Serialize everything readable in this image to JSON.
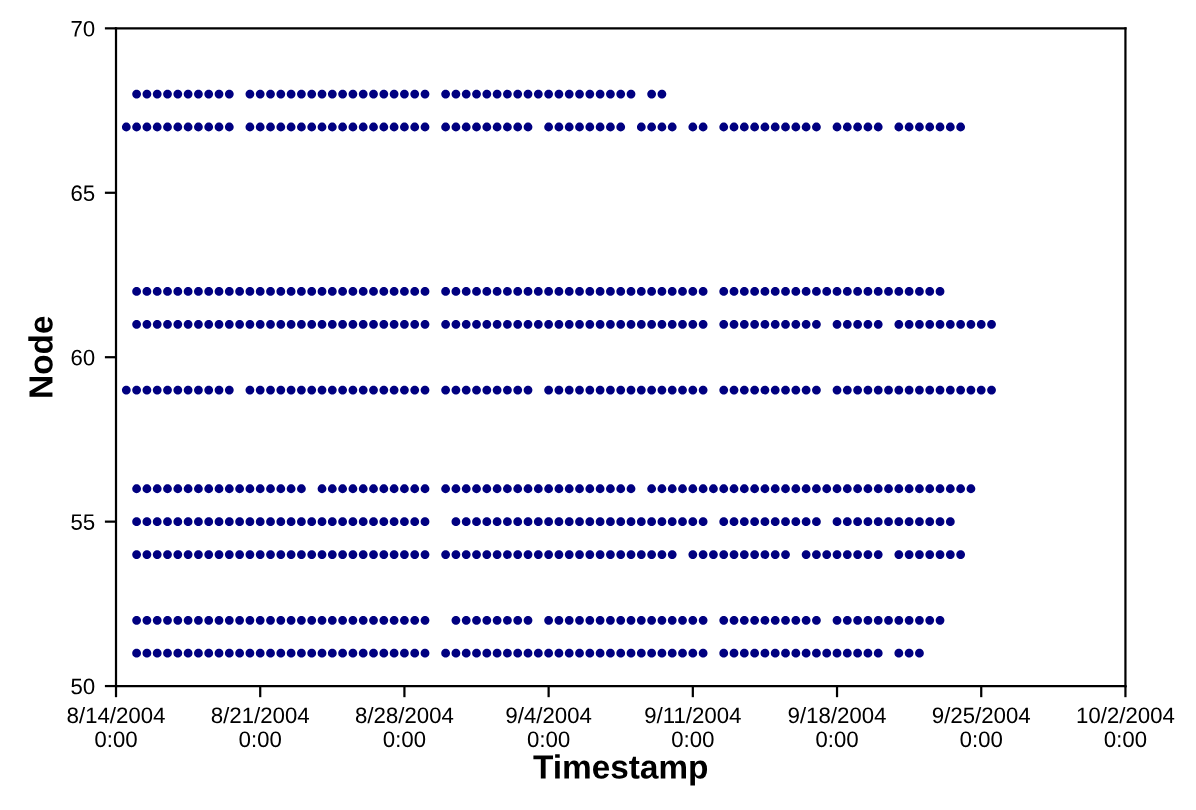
{
  "chart_data": {
    "type": "scatter",
    "xlabel": "Timestamp",
    "ylabel": "Node",
    "marker": "circle",
    "grid": false,
    "xlim": [
      "2004-08-14T00:00",
      "2004-10-02T00:00"
    ],
    "xticks": [
      {
        "value": "2004-08-14T00:00",
        "label": "8/14/2004\n0:00"
      },
      {
        "value": "2004-08-21T00:00",
        "label": "8/21/2004\n0:00"
      },
      {
        "value": "2004-08-28T00:00",
        "label": "8/28/2004\n0:00"
      },
      {
        "value": "2004-09-04T00:00",
        "label": "9/4/2004\n0:00"
      },
      {
        "value": "2004-09-11T00:00",
        "label": "9/11/2004\n0:00"
      },
      {
        "value": "2004-09-18T00:00",
        "label": "9/18/2004\n0:00"
      },
      {
        "value": "2004-09-25T00:00",
        "label": "9/25/2004\n0:00"
      },
      {
        "value": "2004-10-02T00:00",
        "label": "10/2/2004\n0:00"
      }
    ],
    "ylim": [
      50,
      70
    ],
    "yticks": [
      50,
      55,
      60,
      65,
      70
    ],
    "x": [
      "2004-08-14T12:00",
      "2004-08-15T00:00",
      "2004-08-15T12:00",
      "2004-08-16T00:00",
      "2004-08-16T12:00",
      "2004-08-17T00:00",
      "2004-08-17T12:00",
      "2004-08-18T00:00",
      "2004-08-18T12:00",
      "2004-08-19T00:00",
      "2004-08-19T12:00",
      "2004-08-20T00:00",
      "2004-08-20T12:00",
      "2004-08-21T00:00",
      "2004-08-21T12:00",
      "2004-08-22T00:00",
      "2004-08-22T12:00",
      "2004-08-23T00:00",
      "2004-08-23T12:00",
      "2004-08-24T00:00",
      "2004-08-24T12:00",
      "2004-08-25T00:00",
      "2004-08-25T12:00",
      "2004-08-26T00:00",
      "2004-08-26T12:00",
      "2004-08-27T00:00",
      "2004-08-27T12:00",
      "2004-08-28T00:00",
      "2004-08-28T12:00",
      "2004-08-29T00:00",
      "2004-08-29T12:00",
      "2004-08-30T00:00",
      "2004-08-30T12:00",
      "2004-08-31T00:00",
      "2004-08-31T12:00",
      "2004-09-01T00:00",
      "2004-09-01T12:00",
      "2004-09-02T00:00",
      "2004-09-02T12:00",
      "2004-09-03T00:00",
      "2004-09-03T12:00",
      "2004-09-04T00:00",
      "2004-09-04T12:00",
      "2004-09-05T00:00",
      "2004-09-05T12:00",
      "2004-09-06T00:00",
      "2004-09-06T12:00",
      "2004-09-07T00:00",
      "2004-09-07T12:00",
      "2004-09-08T00:00",
      "2004-09-08T12:00",
      "2004-09-09T00:00",
      "2004-09-09T12:00",
      "2004-09-10T00:00",
      "2004-09-10T12:00",
      "2004-09-11T00:00",
      "2004-09-11T12:00",
      "2004-09-12T00:00",
      "2004-09-12T12:00",
      "2004-09-13T00:00",
      "2004-09-13T12:00",
      "2004-09-14T00:00",
      "2004-09-14T12:00",
      "2004-09-15T00:00",
      "2004-09-15T12:00",
      "2004-09-16T00:00",
      "2004-09-16T12:00",
      "2004-09-17T00:00",
      "2004-09-17T12:00",
      "2004-09-18T00:00",
      "2004-09-18T12:00",
      "2004-09-19T00:00",
      "2004-09-19T12:00",
      "2004-09-20T00:00",
      "2004-09-20T12:00",
      "2004-09-21T00:00",
      "2004-09-21T12:00",
      "2004-09-22T00:00",
      "2004-09-22T12:00",
      "2004-09-23T00:00",
      "2004-09-23T12:00",
      "2004-09-24T00:00",
      "2004-09-24T12:00",
      "2004-09-25T00:00",
      "2004-09-25T12:00"
    ],
    "series": [
      {
        "color": "#000080",
        "values": [
          null,
          68,
          68,
          68,
          68,
          68,
          68,
          68,
          68,
          68,
          68,
          null,
          68,
          68,
          68,
          68,
          68,
          68,
          68,
          68,
          68,
          68,
          68,
          68,
          68,
          68,
          68,
          68,
          68,
          68,
          null,
          68,
          68,
          68,
          68,
          68,
          68,
          68,
          68,
          68,
          68,
          68,
          68,
          68,
          68,
          68,
          68,
          68,
          68,
          68,
          null,
          68,
          68,
          null,
          null,
          null,
          null,
          null,
          null,
          null,
          null,
          null,
          null,
          null,
          null,
          null,
          null,
          null,
          null,
          null,
          null,
          null,
          null,
          null,
          null,
          null,
          null,
          null,
          null,
          null,
          null,
          null,
          null,
          null,
          null
        ]
      },
      {
        "color": "#000080",
        "values": [
          67,
          67,
          67,
          67,
          67,
          67,
          67,
          67,
          67,
          67,
          67,
          null,
          67,
          67,
          67,
          67,
          67,
          67,
          67,
          67,
          67,
          67,
          67,
          67,
          67,
          67,
          67,
          67,
          67,
          67,
          null,
          67,
          67,
          67,
          67,
          67,
          67,
          67,
          67,
          67,
          null,
          67,
          67,
          67,
          67,
          67,
          67,
          67,
          67,
          null,
          67,
          67,
          67,
          67,
          null,
          67,
          67,
          null,
          67,
          67,
          67,
          67,
          67,
          67,
          67,
          67,
          67,
          67,
          null,
          67,
          67,
          67,
          67,
          67,
          null,
          67,
          67,
          67,
          67,
          67,
          67,
          67,
          null,
          null,
          null
        ]
      },
      {
        "color": "#000080",
        "values": [
          null,
          62,
          62,
          62,
          62,
          62,
          62,
          62,
          62,
          62,
          62,
          62,
          62,
          62,
          62,
          62,
          62,
          62,
          62,
          62,
          62,
          62,
          62,
          62,
          62,
          62,
          62,
          62,
          62,
          62,
          null,
          62,
          62,
          62,
          62,
          62,
          62,
          62,
          62,
          62,
          62,
          62,
          62,
          62,
          62,
          62,
          62,
          62,
          62,
          62,
          62,
          62,
          62,
          62,
          62,
          62,
          62,
          null,
          62,
          62,
          62,
          62,
          62,
          62,
          62,
          62,
          62,
          62,
          62,
          62,
          62,
          62,
          62,
          62,
          62,
          62,
          62,
          62,
          62,
          62,
          null,
          null,
          null,
          null,
          null
        ]
      },
      {
        "color": "#000080",
        "values": [
          null,
          61,
          61,
          61,
          61,
          61,
          61,
          61,
          61,
          61,
          61,
          61,
          61,
          61,
          61,
          61,
          61,
          61,
          61,
          61,
          61,
          61,
          61,
          61,
          61,
          61,
          61,
          61,
          61,
          61,
          null,
          61,
          61,
          61,
          61,
          61,
          61,
          61,
          61,
          61,
          61,
          61,
          61,
          61,
          61,
          61,
          61,
          61,
          61,
          61,
          61,
          61,
          61,
          61,
          61,
          61,
          61,
          null,
          61,
          61,
          61,
          61,
          61,
          61,
          61,
          61,
          61,
          61,
          null,
          61,
          61,
          61,
          61,
          61,
          null,
          61,
          61,
          61,
          61,
          61,
          61,
          61,
          61,
          61,
          61
        ]
      },
      {
        "color": "#000080",
        "values": [
          59,
          59,
          59,
          59,
          59,
          59,
          59,
          59,
          59,
          59,
          59,
          null,
          59,
          59,
          59,
          59,
          59,
          59,
          59,
          59,
          59,
          59,
          59,
          59,
          59,
          59,
          59,
          59,
          59,
          59,
          null,
          59,
          59,
          59,
          59,
          59,
          59,
          59,
          59,
          59,
          null,
          59,
          59,
          59,
          59,
          59,
          59,
          59,
          59,
          59,
          59,
          59,
          59,
          59,
          59,
          59,
          59,
          null,
          59,
          59,
          59,
          59,
          59,
          59,
          59,
          59,
          59,
          59,
          null,
          59,
          59,
          59,
          59,
          59,
          59,
          59,
          59,
          59,
          59,
          59,
          59,
          59,
          59,
          59,
          59
        ]
      },
      {
        "color": "#000080",
        "values": [
          null,
          56,
          56,
          56,
          56,
          56,
          56,
          56,
          56,
          56,
          56,
          56,
          56,
          56,
          56,
          56,
          56,
          56,
          null,
          56,
          56,
          56,
          56,
          56,
          56,
          56,
          56,
          56,
          56,
          56,
          null,
          56,
          56,
          56,
          56,
          56,
          56,
          56,
          56,
          56,
          56,
          56,
          56,
          56,
          56,
          56,
          56,
          56,
          56,
          56,
          null,
          56,
          56,
          56,
          56,
          56,
          56,
          56,
          56,
          56,
          56,
          56,
          56,
          56,
          56,
          56,
          56,
          56,
          56,
          56,
          56,
          56,
          56,
          56,
          56,
          56,
          56,
          56,
          56,
          56,
          56,
          56,
          56,
          null,
          null
        ]
      },
      {
        "color": "#000080",
        "values": [
          null,
          55,
          55,
          55,
          55,
          55,
          55,
          55,
          55,
          55,
          55,
          55,
          55,
          55,
          55,
          55,
          55,
          55,
          55,
          55,
          55,
          55,
          55,
          55,
          55,
          55,
          55,
          55,
          55,
          55,
          null,
          null,
          55,
          55,
          55,
          55,
          55,
          55,
          55,
          55,
          55,
          55,
          55,
          55,
          55,
          55,
          55,
          55,
          55,
          55,
          55,
          55,
          55,
          55,
          55,
          55,
          55,
          null,
          55,
          55,
          55,
          55,
          55,
          55,
          55,
          55,
          55,
          55,
          null,
          55,
          55,
          55,
          55,
          55,
          55,
          55,
          55,
          55,
          55,
          55,
          55,
          null,
          null,
          null,
          null
        ]
      },
      {
        "color": "#000080",
        "values": [
          null,
          54,
          54,
          54,
          54,
          54,
          54,
          54,
          54,
          54,
          54,
          54,
          54,
          54,
          54,
          54,
          54,
          54,
          54,
          54,
          54,
          54,
          54,
          54,
          54,
          54,
          54,
          54,
          54,
          54,
          null,
          54,
          54,
          54,
          54,
          54,
          54,
          54,
          54,
          54,
          54,
          54,
          54,
          54,
          54,
          54,
          54,
          54,
          54,
          54,
          54,
          54,
          54,
          54,
          null,
          54,
          54,
          54,
          54,
          54,
          54,
          54,
          54,
          54,
          54,
          null,
          54,
          54,
          54,
          54,
          54,
          54,
          54,
          54,
          null,
          54,
          54,
          54,
          54,
          54,
          54,
          54,
          null,
          null,
          null
        ]
      },
      {
        "color": "#000080",
        "values": [
          null,
          52,
          52,
          52,
          52,
          52,
          52,
          52,
          52,
          52,
          52,
          52,
          52,
          52,
          52,
          52,
          52,
          52,
          52,
          52,
          52,
          52,
          52,
          52,
          52,
          52,
          52,
          52,
          52,
          52,
          null,
          null,
          52,
          52,
          52,
          52,
          52,
          52,
          52,
          52,
          null,
          52,
          52,
          52,
          52,
          52,
          52,
          52,
          52,
          52,
          52,
          52,
          52,
          52,
          52,
          52,
          52,
          null,
          52,
          52,
          52,
          52,
          52,
          52,
          52,
          52,
          52,
          52,
          null,
          52,
          52,
          52,
          52,
          52,
          52,
          52,
          52,
          52,
          52,
          52,
          null,
          null,
          null,
          null,
          null
        ]
      },
      {
        "color": "#000080",
        "values": [
          null,
          51,
          51,
          51,
          51,
          51,
          51,
          51,
          51,
          51,
          51,
          51,
          51,
          51,
          51,
          51,
          51,
          51,
          51,
          51,
          51,
          51,
          51,
          51,
          51,
          51,
          51,
          51,
          51,
          51,
          null,
          51,
          51,
          51,
          51,
          51,
          51,
          51,
          51,
          51,
          51,
          51,
          51,
          51,
          51,
          51,
          51,
          51,
          51,
          51,
          51,
          51,
          51,
          51,
          51,
          51,
          51,
          null,
          51,
          51,
          51,
          51,
          51,
          51,
          51,
          51,
          51,
          51,
          51,
          51,
          51,
          51,
          51,
          51,
          null,
          51,
          51,
          51,
          null,
          null,
          null,
          null,
          null,
          null,
          null
        ]
      }
    ]
  }
}
